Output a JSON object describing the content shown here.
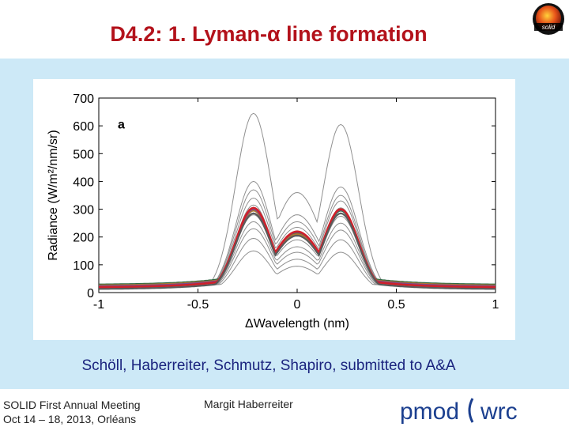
{
  "slide": {
    "title": "D4.2: 1. Lyman-α line formation",
    "logo_text": "solid",
    "citation": "Schöll, Haberreiter, Schmutz, Shapiro, submitted to A&A",
    "footer_line1": "SOLID First Annual Meeting",
    "footer_line2": "Oct 14 – 18, 2013, Orléans",
    "presenter": "Margit Haberreiter",
    "brand_left": "pmod",
    "brand_right": "wrc",
    "colors": {
      "title": "#b3121b",
      "panel": "#cde9f7",
      "citation": "#1a237e"
    }
  },
  "chart_data": {
    "type": "line",
    "panel_label": "a",
    "xlabel": "ΔWavelength (nm)",
    "ylabel": "Radiance (W/m²/nm/sr)",
    "xlim": [
      -1,
      1
    ],
    "ylim": [
      0,
      700
    ],
    "xticks": [
      -1,
      -0.5,
      0,
      0.5,
      1
    ],
    "yticks": [
      0,
      100,
      200,
      300,
      400,
      500,
      600,
      700
    ],
    "grid": false,
    "series": [
      {
        "color": "#909090",
        "width": 1,
        "peak_left": 645,
        "peak_right": 605,
        "center": 360,
        "wing": 10
      },
      {
        "color": "#909090",
        "width": 1,
        "peak_left": 400,
        "peak_right": 380,
        "center": 280,
        "wing": 12
      },
      {
        "color": "#909090",
        "width": 1,
        "peak_left": 370,
        "peak_right": 350,
        "center": 255,
        "wing": 13
      },
      {
        "color": "#909090",
        "width": 1,
        "peak_left": 340,
        "peak_right": 330,
        "center": 235,
        "wing": 14
      },
      {
        "color": "#909090",
        "width": 1,
        "peak_left": 315,
        "peak_right": 305,
        "center": 215,
        "wing": 15
      },
      {
        "color": "#909090",
        "width": 1,
        "peak_left": 280,
        "peak_right": 275,
        "center": 190,
        "wing": 15
      },
      {
        "color": "#909090",
        "width": 1,
        "peak_left": 255,
        "peak_right": 250,
        "center": 165,
        "wing": 16
      },
      {
        "color": "#909090",
        "width": 1,
        "peak_left": 230,
        "peak_right": 225,
        "center": 145,
        "wing": 17
      },
      {
        "color": "#909090",
        "width": 1,
        "peak_left": 195,
        "peak_right": 190,
        "center": 120,
        "wing": 18
      },
      {
        "color": "#909090",
        "width": 1,
        "peak_left": 150,
        "peak_right": 145,
        "center": 95,
        "wing": 20
      },
      {
        "color": "#2e6b45",
        "width": 2.2,
        "peak_left": 300,
        "peak_right": 295,
        "center": 215,
        "wing": 28
      },
      {
        "color": "#b07830",
        "width": 2.2,
        "peak_left": 295,
        "peak_right": 300,
        "center": 210,
        "wing": 25
      },
      {
        "color": "#7a4a8a",
        "width": 2.2,
        "peak_left": 300,
        "peak_right": 298,
        "center": 218,
        "wing": 22
      },
      {
        "color": "#d0202a",
        "width": 2.6,
        "peak_left": 305,
        "peak_right": 300,
        "center": 220,
        "wing": 18
      },
      {
        "color": "#5a5a5a",
        "width": 2.2,
        "peak_left": 285,
        "peak_right": 285,
        "center": 205,
        "wing": 12
      }
    ]
  }
}
